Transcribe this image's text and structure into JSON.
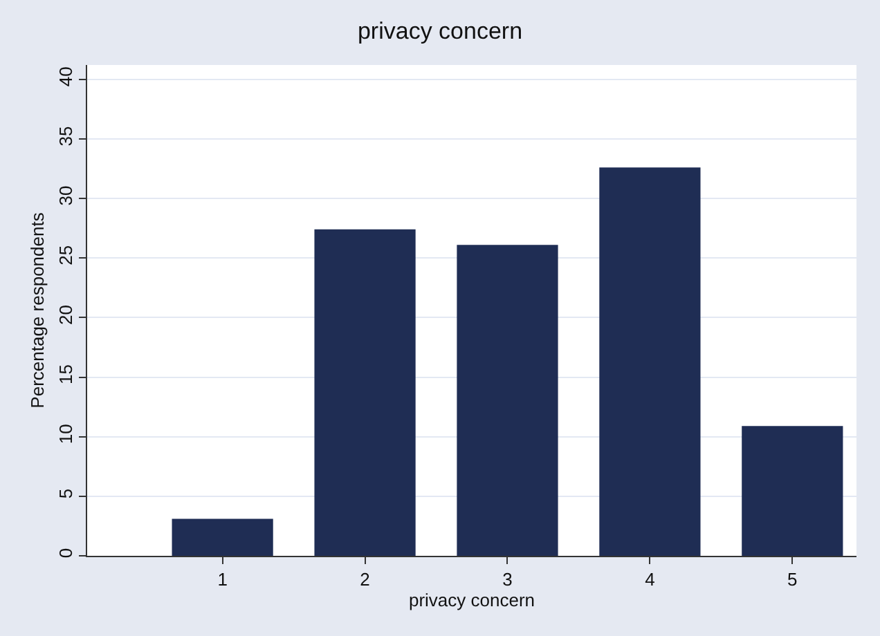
{
  "chart_data": {
    "type": "bar",
    "title": "privacy concern",
    "xlabel": "privacy concern",
    "ylabel": "Percentage respondents",
    "x": [
      1,
      2,
      3,
      4,
      5
    ],
    "series": [
      {
        "color": "#1f2d54",
        "values": [
          3.1,
          27.4,
          26.1,
          32.6,
          10.9
        ]
      }
    ],
    "xlim": [
      0.05,
      5.45
    ],
    "xticks": [
      1,
      2,
      3,
      4,
      5
    ],
    "ylim": [
      0,
      41.2
    ],
    "yticks": [
      0,
      5,
      10,
      15,
      20,
      25,
      30,
      35,
      40
    ],
    "grid": "y"
  }
}
